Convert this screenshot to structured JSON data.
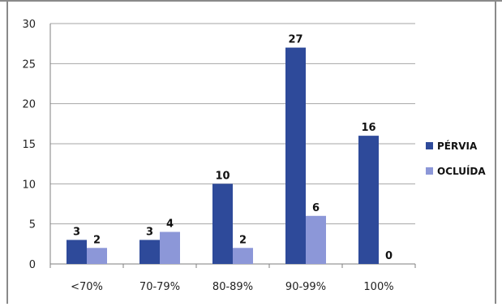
{
  "chart_data": {
    "type": "bar",
    "categories": [
      "<70%",
      "70-79%",
      "80-89%",
      "90-99%",
      "100%"
    ],
    "series": [
      {
        "name": "PÉRVIA",
        "values": [
          3,
          3,
          10,
          27,
          16
        ],
        "color": "#2e4a9a"
      },
      {
        "name": "OCLUÍDA",
        "values": [
          2,
          4,
          2,
          6,
          0
        ],
        "color": "#8c97d8"
      }
    ],
    "title": "",
    "xlabel": "",
    "ylabel": "",
    "ylim": [
      0,
      30
    ],
    "yticks": [
      0,
      5,
      10,
      15,
      20,
      25,
      30
    ],
    "grid": true,
    "legend_position": "right",
    "data_labels": true
  }
}
